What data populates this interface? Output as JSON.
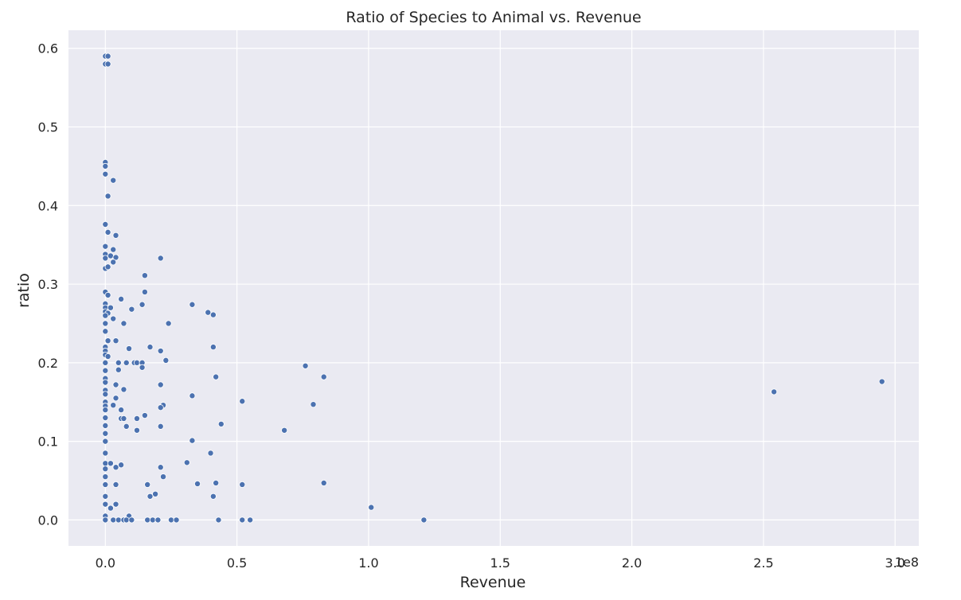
{
  "chart_data": {
    "type": "scatter",
    "title": "Ratio of Species to Animal vs. Revenue",
    "xlabel": "Revenue",
    "ylabel": "ratio",
    "x_offset_label": "1e8",
    "xlim": [
      -0.14,
      3.09
    ],
    "ylim": [
      -0.033,
      0.623
    ],
    "x_ticks": [
      0.0,
      0.5,
      1.0,
      1.5,
      2.0,
      2.5,
      3.0
    ],
    "x_tick_labels": [
      "0.0",
      "0.5",
      "1.0",
      "1.5",
      "2.0",
      "2.5",
      "3.0"
    ],
    "y_ticks": [
      0.0,
      0.1,
      0.2,
      0.3,
      0.4,
      0.5,
      0.6
    ],
    "y_tick_labels": [
      "0.0",
      "0.1",
      "0.2",
      "0.3",
      "0.4",
      "0.5",
      "0.6"
    ],
    "grid": true,
    "background_color": "#eaeaf2",
    "point_color": "#4c72b0",
    "points": [
      [
        0.0,
        0.59
      ],
      [
        0.01,
        0.59
      ],
      [
        0.0,
        0.58
      ],
      [
        0.01,
        0.58
      ],
      [
        0.0,
        0.455
      ],
      [
        0.0,
        0.45
      ],
      [
        0.0,
        0.44
      ],
      [
        0.03,
        0.432
      ],
      [
        0.01,
        0.412
      ],
      [
        0.0,
        0.376
      ],
      [
        0.01,
        0.366
      ],
      [
        0.04,
        0.362
      ],
      [
        0.0,
        0.348
      ],
      [
        0.03,
        0.344
      ],
      [
        0.0,
        0.338
      ],
      [
        0.02,
        0.336
      ],
      [
        0.0,
        0.333
      ],
      [
        0.04,
        0.334
      ],
      [
        0.03,
        0.328
      ],
      [
        0.0,
        0.32
      ],
      [
        0.01,
        0.322
      ],
      [
        0.21,
        0.333
      ],
      [
        0.15,
        0.311
      ],
      [
        0.0,
        0.29
      ],
      [
        0.01,
        0.286
      ],
      [
        0.15,
        0.29
      ],
      [
        0.06,
        0.281
      ],
      [
        0.0,
        0.275
      ],
      [
        0.14,
        0.274
      ],
      [
        0.33,
        0.274
      ],
      [
        0.0,
        0.27
      ],
      [
        0.02,
        0.27
      ],
      [
        0.0,
        0.265
      ],
      [
        0.1,
        0.268
      ],
      [
        0.01,
        0.263
      ],
      [
        0.0,
        0.26
      ],
      [
        0.03,
        0.256
      ],
      [
        0.39,
        0.264
      ],
      [
        0.41,
        0.261
      ],
      [
        0.0,
        0.25
      ],
      [
        0.07,
        0.25
      ],
      [
        0.24,
        0.25
      ],
      [
        0.0,
        0.24
      ],
      [
        0.01,
        0.228
      ],
      [
        0.04,
        0.228
      ],
      [
        0.0,
        0.22
      ],
      [
        0.17,
        0.22
      ],
      [
        0.41,
        0.22
      ],
      [
        0.0,
        0.215
      ],
      [
        0.09,
        0.218
      ],
      [
        0.21,
        0.215
      ],
      [
        0.0,
        0.21
      ],
      [
        0.01,
        0.208
      ],
      [
        0.0,
        0.2
      ],
      [
        0.05,
        0.2
      ],
      [
        0.08,
        0.2
      ],
      [
        0.11,
        0.2
      ],
      [
        0.12,
        0.2
      ],
      [
        0.14,
        0.2
      ],
      [
        0.23,
        0.203
      ],
      [
        0.0,
        0.19
      ],
      [
        0.05,
        0.191
      ],
      [
        0.14,
        0.194
      ],
      [
        0.76,
        0.196
      ],
      [
        0.0,
        0.18
      ],
      [
        0.42,
        0.182
      ],
      [
        0.83,
        0.182
      ],
      [
        0.0,
        0.175
      ],
      [
        0.04,
        0.172
      ],
      [
        0.21,
        0.172
      ],
      [
        0.0,
        0.165
      ],
      [
        0.07,
        0.166
      ],
      [
        2.54,
        0.163
      ],
      [
        2.95,
        0.176
      ],
      [
        0.0,
        0.16
      ],
      [
        0.04,
        0.155
      ],
      [
        0.33,
        0.158
      ],
      [
        0.0,
        0.15
      ],
      [
        0.52,
        0.151
      ],
      [
        0.0,
        0.145
      ],
      [
        0.03,
        0.146
      ],
      [
        0.22,
        0.146
      ],
      [
        0.79,
        0.147
      ],
      [
        0.0,
        0.14
      ],
      [
        0.06,
        0.14
      ],
      [
        0.21,
        0.143
      ],
      [
        0.0,
        0.13
      ],
      [
        0.06,
        0.129
      ],
      [
        0.07,
        0.129
      ],
      [
        0.12,
        0.129
      ],
      [
        0.15,
        0.133
      ],
      [
        0.0,
        0.12
      ],
      [
        0.08,
        0.119
      ],
      [
        0.21,
        0.119
      ],
      [
        0.44,
        0.122
      ],
      [
        0.0,
        0.11
      ],
      [
        0.12,
        0.114
      ],
      [
        0.68,
        0.114
      ],
      [
        0.0,
        0.1
      ],
      [
        0.33,
        0.101
      ],
      [
        0.0,
        0.085
      ],
      [
        0.4,
        0.085
      ],
      [
        0.0,
        0.072
      ],
      [
        0.02,
        0.072
      ],
      [
        0.06,
        0.07
      ],
      [
        0.31,
        0.073
      ],
      [
        0.0,
        0.065
      ],
      [
        0.04,
        0.067
      ],
      [
        0.21,
        0.067
      ],
      [
        0.0,
        0.055
      ],
      [
        0.22,
        0.055
      ],
      [
        0.0,
        0.045
      ],
      [
        0.04,
        0.045
      ],
      [
        0.16,
        0.045
      ],
      [
        0.35,
        0.046
      ],
      [
        0.42,
        0.047
      ],
      [
        0.52,
        0.045
      ],
      [
        0.83,
        0.047
      ],
      [
        0.0,
        0.03
      ],
      [
        0.17,
        0.03
      ],
      [
        0.19,
        0.033
      ],
      [
        0.41,
        0.03
      ],
      [
        0.0,
        0.02
      ],
      [
        0.02,
        0.015
      ],
      [
        0.04,
        0.02
      ],
      [
        1.01,
        0.016
      ],
      [
        0.0,
        0.005
      ],
      [
        0.09,
        0.005
      ],
      [
        0.0,
        0.0
      ],
      [
        0.03,
        0.0
      ],
      [
        0.05,
        0.0
      ],
      [
        0.07,
        0.0
      ],
      [
        0.08,
        0.0
      ],
      [
        0.1,
        0.0
      ],
      [
        0.16,
        0.0
      ],
      [
        0.18,
        0.0
      ],
      [
        0.2,
        0.0
      ],
      [
        0.25,
        0.0
      ],
      [
        0.27,
        0.0
      ],
      [
        0.43,
        0.0
      ],
      [
        0.52,
        0.0
      ],
      [
        0.55,
        0.0
      ],
      [
        1.21,
        0.0
      ]
    ]
  }
}
